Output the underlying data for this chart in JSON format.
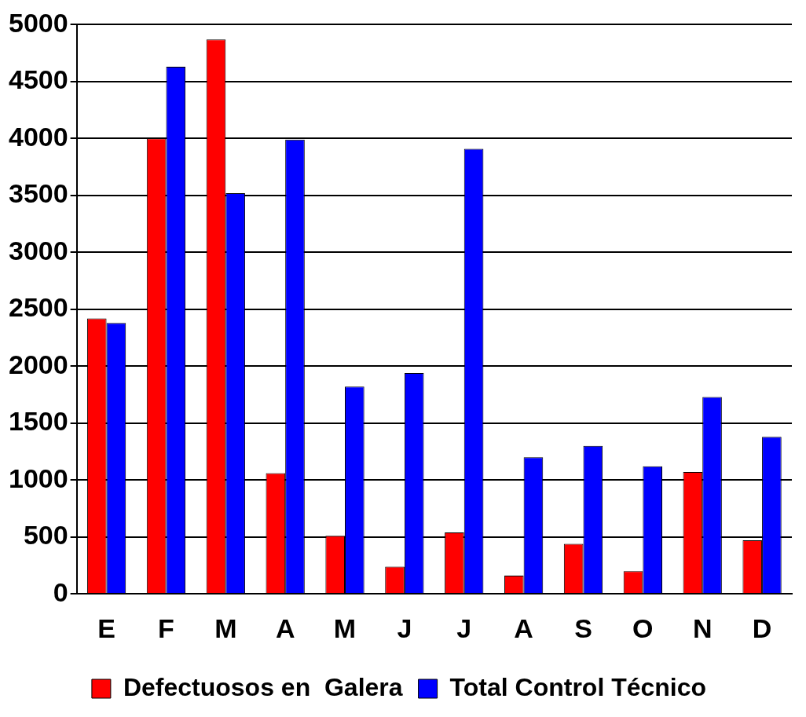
{
  "chart_data": {
    "type": "bar",
    "categories": [
      "E",
      "F",
      "M",
      "A",
      "M",
      "J",
      "J",
      "A",
      "S",
      "O",
      "N",
      "D"
    ],
    "series": [
      {
        "name": "Defectuosos en  Galera",
        "color": "#ff0000",
        "values": [
          2420,
          4000,
          4870,
          1060,
          510,
          240,
          540,
          160,
          440,
          200,
          1070,
          470
        ]
      },
      {
        "name": "Total Control Técnico",
        "color": "#0000ff",
        "values": [
          2380,
          4630,
          3520,
          3990,
          1820,
          1940,
          3910,
          1200,
          1300,
          1120,
          1730,
          1380
        ]
      }
    ],
    "ylim": [
      0,
      5000
    ],
    "yticks": [
      0,
      500,
      1000,
      1500,
      2000,
      2500,
      3000,
      3500,
      4000,
      4500,
      5000
    ],
    "grid": "y",
    "legend": "bottom"
  }
}
